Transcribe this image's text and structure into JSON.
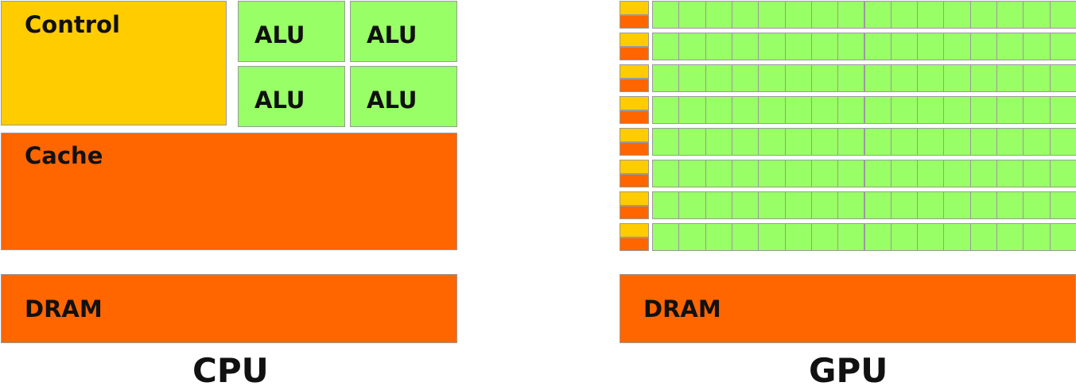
{
  "cpu": {
    "control_label": "Control",
    "alu_labels": [
      "ALU",
      "ALU",
      "ALU",
      "ALU"
    ],
    "cache_label": "Cache",
    "dram_label": "DRAM",
    "title": "CPU"
  },
  "gpu": {
    "dram_label": "DRAM",
    "title": "GPU",
    "rows": 8,
    "alus_per_row": 16
  },
  "colors": {
    "control": "#ffcc00",
    "cache": "#ff6600",
    "alu": "#99ff66",
    "dram": "#ff6600"
  }
}
